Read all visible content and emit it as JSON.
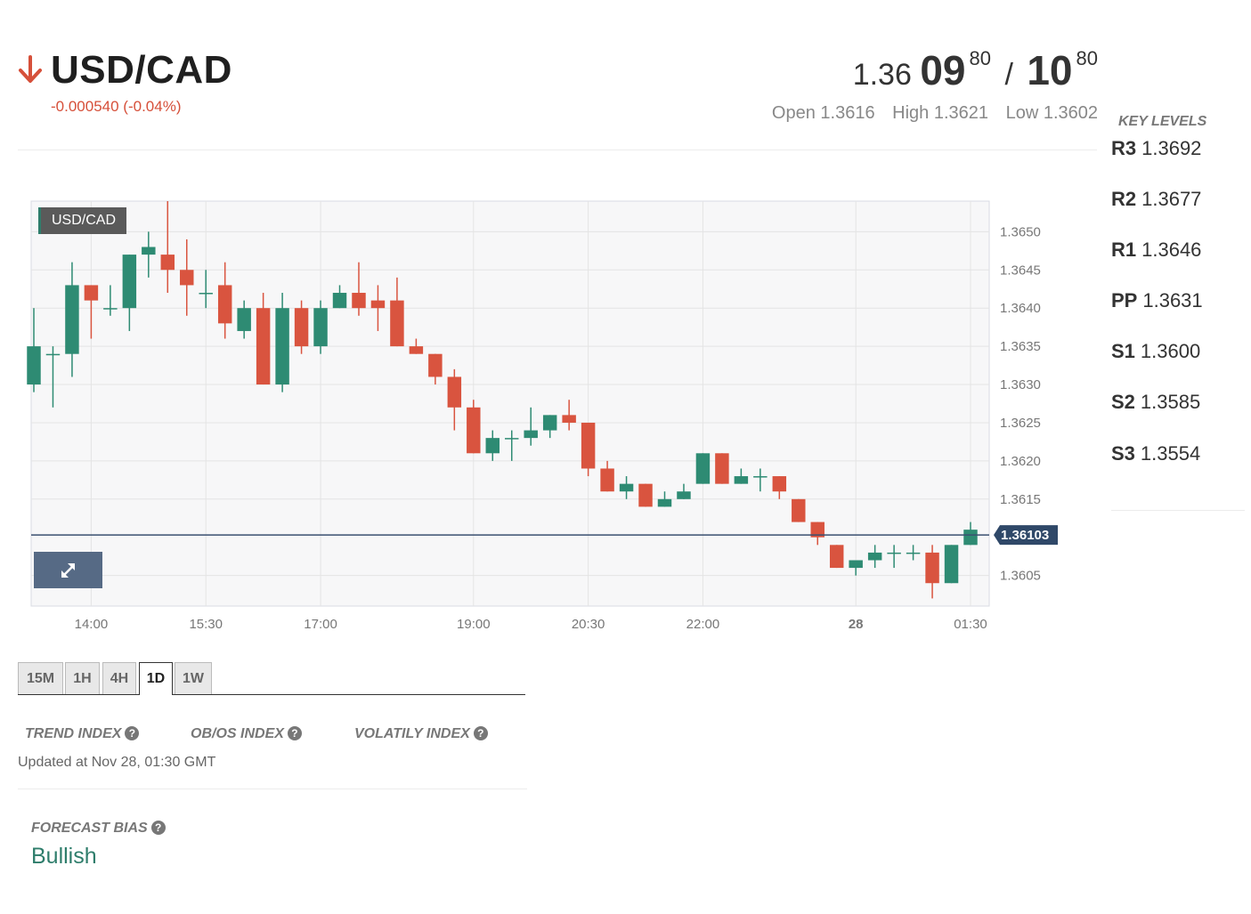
{
  "header": {
    "pair": "USD/CAD",
    "change": "-0.000540 (-0.04%)",
    "direction_icon": "arrow-down-icon",
    "down_color": "#d6503a"
  },
  "quote": {
    "bid_prefix": "1.36",
    "bid_main": "09",
    "bid_pip": "80",
    "separator": "/",
    "ask_main": "10",
    "ask_pip": "80",
    "open": "Open 1.3616",
    "high": "High 1.3621",
    "low": "Low 1.3602"
  },
  "key_levels": {
    "title": "KEY LEVELS",
    "items": [
      {
        "label": "R3",
        "value": "1.3692"
      },
      {
        "label": "R2",
        "value": "1.3677"
      },
      {
        "label": "R1",
        "value": "1.3646"
      },
      {
        "label": "PP",
        "value": "1.3631"
      },
      {
        "label": "S1",
        "value": "1.3600"
      },
      {
        "label": "S2",
        "value": "1.3585"
      },
      {
        "label": "S3",
        "value": "1.3554"
      }
    ]
  },
  "chart": {
    "label": "USD/CAD",
    "current_price_label": "1.36103",
    "expand_icon": "expand-icon"
  },
  "chart_data": {
    "type": "candlestick",
    "title": "USD/CAD",
    "x_tick_labels": [
      "14:00",
      "15:30",
      "17:00",
      "19:00",
      "20:30",
      "22:00",
      "28",
      "01:30"
    ],
    "y_tick_labels": [
      "1.3650",
      "1.3645",
      "1.3640",
      "1.3635",
      "1.3630",
      "1.3625",
      "1.3620",
      "1.3615",
      "1.3605"
    ],
    "ylim": [
      1.3601,
      1.3654
    ],
    "current_price": 1.36103,
    "grid": true,
    "up_color": "#2e8b73",
    "down_color": "#d9543f",
    "candles": [
      [
        1.363,
        1.364,
        1.3629,
        1.3635
      ],
      [
        1.3634,
        1.3635,
        1.3627,
        1.3634
      ],
      [
        1.3634,
        1.3646,
        1.3631,
        1.3643
      ],
      [
        1.3643,
        1.3643,
        1.3636,
        1.3641
      ],
      [
        1.364,
        1.3643,
        1.3639,
        1.364
      ],
      [
        1.364,
        1.3647,
        1.3637,
        1.3647
      ],
      [
        1.3647,
        1.365,
        1.3644,
        1.3648
      ],
      [
        1.3647,
        1.3654,
        1.3642,
        1.3645
      ],
      [
        1.3645,
        1.3649,
        1.3639,
        1.3643
      ],
      [
        1.3642,
        1.3645,
        1.364,
        1.3642
      ],
      [
        1.3643,
        1.3646,
        1.3636,
        1.3638
      ],
      [
        1.3637,
        1.3641,
        1.3636,
        1.364
      ],
      [
        1.364,
        1.3642,
        1.363,
        1.363
      ],
      [
        1.363,
        1.3642,
        1.3629,
        1.364
      ],
      [
        1.364,
        1.3641,
        1.3634,
        1.3635
      ],
      [
        1.3635,
        1.3641,
        1.3634,
        1.364
      ],
      [
        1.364,
        1.3643,
        1.364,
        1.3642
      ],
      [
        1.3642,
        1.3646,
        1.3639,
        1.364
      ],
      [
        1.3641,
        1.3643,
        1.3637,
        1.364
      ],
      [
        1.3641,
        1.3644,
        1.3635,
        1.3635
      ],
      [
        1.3635,
        1.3636,
        1.3634,
        1.3634
      ],
      [
        1.3634,
        1.3634,
        1.363,
        1.3631
      ],
      [
        1.3631,
        1.3632,
        1.3624,
        1.3627
      ],
      [
        1.3627,
        1.3628,
        1.3621,
        1.3621
      ],
      [
        1.3621,
        1.3624,
        1.362,
        1.3623
      ],
      [
        1.3623,
        1.3624,
        1.362,
        1.3623
      ],
      [
        1.3623,
        1.3627,
        1.3622,
        1.3624
      ],
      [
        1.3624,
        1.3626,
        1.3623,
        1.3626
      ],
      [
        1.3626,
        1.3628,
        1.3624,
        1.3625
      ],
      [
        1.3625,
        1.3625,
        1.3618,
        1.3619
      ],
      [
        1.3619,
        1.362,
        1.3616,
        1.3616
      ],
      [
        1.3616,
        1.3618,
        1.3615,
        1.3617
      ],
      [
        1.3617,
        1.3617,
        1.3614,
        1.3614
      ],
      [
        1.3614,
        1.3616,
        1.3614,
        1.3615
      ],
      [
        1.3615,
        1.3617,
        1.3615,
        1.3616
      ],
      [
        1.3617,
        1.3621,
        1.3617,
        1.3621
      ],
      [
        1.3621,
        1.3621,
        1.3617,
        1.3617
      ],
      [
        1.3617,
        1.3619,
        1.3617,
        1.3618
      ],
      [
        1.3618,
        1.3619,
        1.3616,
        1.3618
      ],
      [
        1.3618,
        1.3618,
        1.3615,
        1.3616
      ],
      [
        1.3615,
        1.3615,
        1.3612,
        1.3612
      ],
      [
        1.3612,
        1.3612,
        1.3609,
        1.361
      ],
      [
        1.3609,
        1.3609,
        1.3606,
        1.3606
      ],
      [
        1.3606,
        1.3607,
        1.3605,
        1.3607
      ],
      [
        1.3607,
        1.3609,
        1.3606,
        1.3608
      ],
      [
        1.3608,
        1.3609,
        1.3606,
        1.3608
      ],
      [
        1.3608,
        1.3609,
        1.3607,
        1.3608
      ],
      [
        1.3608,
        1.3609,
        1.3602,
        1.3604
      ],
      [
        1.3604,
        1.3609,
        1.3604,
        1.3609
      ],
      [
        1.3609,
        1.3612,
        1.3609,
        1.3611
      ]
    ]
  },
  "timeframes": {
    "items": [
      "15M",
      "1H",
      "4H",
      "1D",
      "1W"
    ],
    "active": "1D"
  },
  "indexes": {
    "trend": "TREND INDEX",
    "obos": "OB/OS INDEX",
    "volatility": "VOLATILY INDEX",
    "updated": "Updated at Nov 28, 01:30 GMT"
  },
  "forecast": {
    "label": "FORECAST BIAS",
    "value": "Bullish",
    "color": "#2e7d6b"
  }
}
